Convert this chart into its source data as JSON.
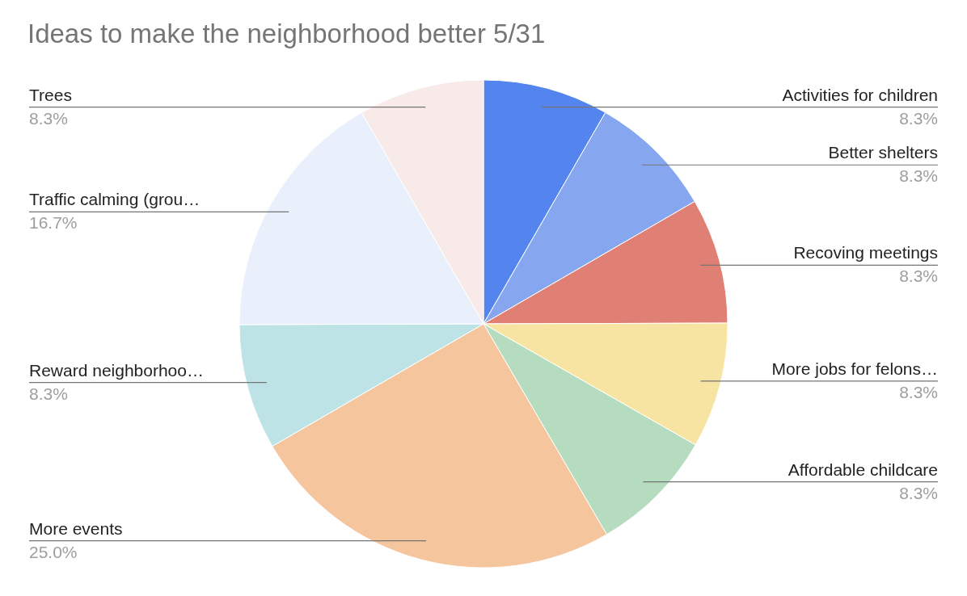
{
  "chart_data": {
    "type": "pie",
    "title": "Ideas to make the neighborhood better 5/31",
    "categories": [
      "Activities for children",
      "Better shelters",
      "Recoving meetings",
      "More jobs for felons…",
      "Affordable childcare",
      "More events",
      "Reward neighborhoo…",
      "Traffic calming (grou…",
      "Trees"
    ],
    "values": [
      8.3,
      8.3,
      8.3,
      8.3,
      8.3,
      25.0,
      8.3,
      16.7,
      8.3
    ],
    "value_labels": [
      "8.3%",
      "8.3%",
      "8.3%",
      "8.3%",
      "8.3%",
      "25.0%",
      "8.3%",
      "16.7%",
      "8.3%"
    ],
    "colors": [
      "#5484ed",
      "#86a7f0",
      "#e07f73",
      "#f7e3a2",
      "#b6dcc0",
      "#f5c69d",
      "#bee3e6",
      "#eaf0fb",
      "#f9eaea"
    ]
  }
}
